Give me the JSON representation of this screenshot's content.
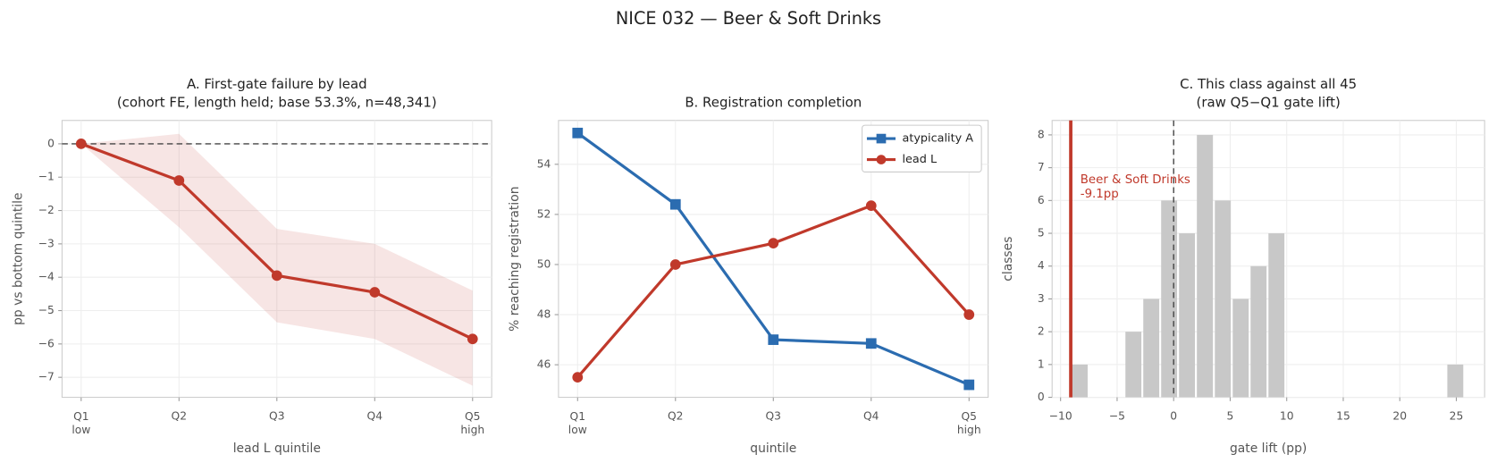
{
  "title": "NICE 032 — Beer & Soft Drinks",
  "chart_data": [
    {
      "type": "line",
      "title": "A. First-gate failure by lead",
      "subtitle": "(cohort FE, length held; base 53.3%, n=48,341)",
      "xlabel": "lead L quintile",
      "ylabel": "pp vs bottom quintile",
      "categories": [
        "Q1\nlow",
        "Q2",
        "Q3",
        "Q4",
        "Q5\nhigh"
      ],
      "series": [
        {
          "name": null,
          "color": "#c0392b",
          "marker": "circle",
          "values": [
            0,
            -1.1,
            -3.95,
            -4.45,
            -5.85
          ]
        }
      ],
      "band": {
        "color": "#c0392b",
        "lower": [
          0,
          -2.5,
          -5.35,
          -5.85,
          -7.25
        ],
        "upper": [
          0,
          0.3,
          -2.55,
          -3.0,
          -4.4
        ]
      },
      "hline": 0,
      "ylim": [
        -7.6,
        0.7
      ],
      "yticks": [
        0,
        {
          "value": -1,
          "label": "−1"
        },
        {
          "value": -2,
          "label": "−2"
        },
        {
          "value": -3,
          "label": "−3"
        },
        {
          "value": -4,
          "label": "−4"
        },
        {
          "value": -5,
          "label": "−5"
        },
        {
          "value": -6,
          "label": "−6"
        },
        {
          "value": -7,
          "label": "−7"
        }
      ],
      "grid": true
    },
    {
      "type": "line",
      "title": "B. Registration completion",
      "xlabel": "quintile",
      "ylabel": "% reaching registration",
      "categories": [
        "Q1\nlow",
        "Q2",
        "Q3",
        "Q4",
        "Q5\nhigh"
      ],
      "series": [
        {
          "name": "atypicality A",
          "color": "#2b6cb0",
          "marker": "square",
          "values": [
            55.25,
            52.4,
            47.0,
            46.85,
            45.2
          ]
        },
        {
          "name": "lead L",
          "color": "#c0392b",
          "marker": "circle",
          "values": [
            45.5,
            50.0,
            50.85,
            52.35,
            48.0
          ]
        }
      ],
      "legend": "upper right",
      "ylim": [
        44.7,
        55.75
      ],
      "yticks": [
        46,
        48,
        50,
        52,
        54
      ],
      "grid": true
    },
    {
      "type": "histogram",
      "title": "C. This class against all 45",
      "subtitle": "(raw Q5−Q1 gate lift)",
      "xlabel": "gate lift (pp)",
      "ylabel": "classes",
      "bins": [
        -9.1,
        -7.52,
        -5.94,
        -4.35,
        -2.77,
        -1.19,
        0.39,
        1.97,
        3.56,
        5.14,
        6.72,
        8.3,
        9.88,
        11.47,
        13.05,
        14.63,
        16.21,
        17.79,
        19.38,
        20.96,
        22.54,
        24.12,
        25.7
      ],
      "counts": [
        1,
        0,
        0,
        2,
        3,
        6,
        5,
        8,
        6,
        3,
        4,
        5,
        0,
        0,
        0,
        0,
        0,
        0,
        0,
        0,
        0,
        1
      ],
      "color": "#c8c8c8",
      "highlight": {
        "value": -9.1,
        "color": "#c0392b",
        "label": "Beer & Soft Drinks",
        "value_label": "-9.1pp"
      },
      "vline": 0,
      "xlim": [
        -10.75,
        27.5
      ],
      "xticks": [
        {
          "value": -10,
          "label": "−10"
        },
        {
          "value": -5,
          "label": "−5"
        },
        0,
        5,
        10,
        15,
        20,
        25
      ],
      "ylim": [
        0,
        8.44
      ],
      "yticks": [
        0,
        1,
        2,
        3,
        4,
        5,
        6,
        7,
        8
      ],
      "grid": true
    }
  ]
}
